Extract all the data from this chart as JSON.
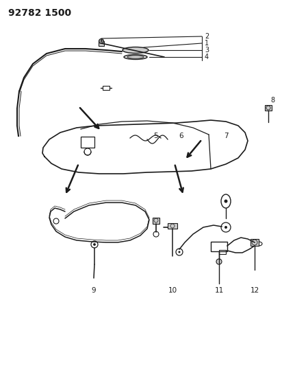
{
  "title": "92782 1500",
  "bg_color": "#ffffff",
  "line_color": "#1a1a1a",
  "title_fontsize": 10,
  "title_fontweight": "bold"
}
